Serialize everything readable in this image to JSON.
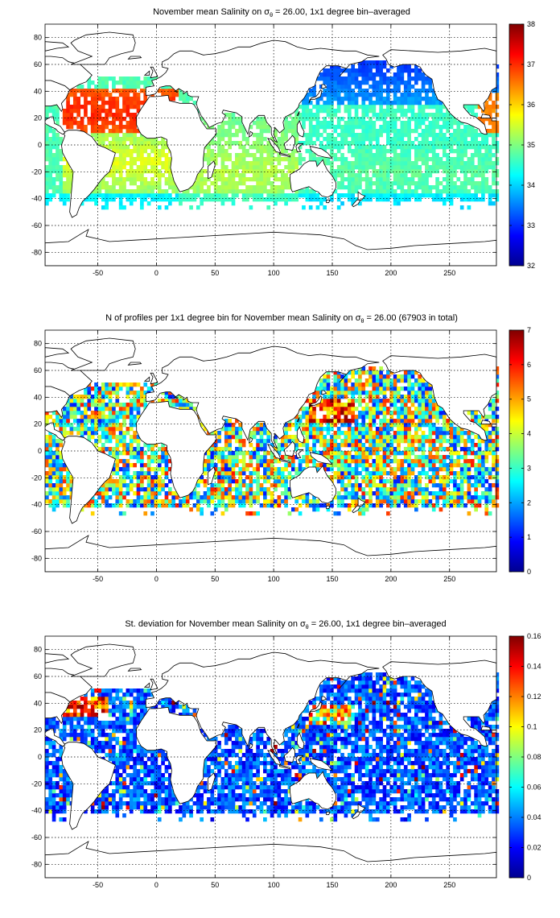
{
  "colormap": "jet",
  "chart_data": [
    {
      "type": "heatmap",
      "title_prefix": "November mean Salinity on ",
      "title_sigma": "σ",
      "title_subscript": "θ",
      "title_suffix": " = 26.00, 1x1 degree bin–averaged",
      "xlim": [
        -95,
        290
      ],
      "ylim": [
        -90,
        90
      ],
      "xticks": [
        -50,
        0,
        50,
        100,
        150,
        200,
        250
      ],
      "yticks": [
        -80,
        -60,
        -40,
        -20,
        0,
        20,
        40,
        60,
        80
      ],
      "grid": true,
      "colorbar": {
        "min": 32,
        "max": 38,
        "ticks": [
          32,
          33,
          34,
          35,
          36,
          37,
          38
        ]
      },
      "field": "salinity"
    },
    {
      "type": "heatmap",
      "title_prefix": "N of profiles per 1x1 degree bin for November mean Salinity on ",
      "title_sigma": "σ",
      "title_subscript": "θ",
      "title_suffix": " = 26.00 (67903 in total)",
      "xlim": [
        -95,
        290
      ],
      "ylim": [
        -90,
        90
      ],
      "xticks": [
        -50,
        0,
        50,
        100,
        150,
        200,
        250
      ],
      "yticks": [
        -80,
        -60,
        -40,
        -20,
        0,
        20,
        40,
        60,
        80
      ],
      "grid": true,
      "colorbar": {
        "min": 0,
        "max": 7,
        "ticks": [
          0,
          1,
          2,
          3,
          4,
          5,
          6,
          7
        ]
      },
      "field": "count"
    },
    {
      "type": "heatmap",
      "title_prefix": "St. deviation for November mean Salinity on ",
      "title_sigma": "σ",
      "title_subscript": "θ",
      "title_suffix": " = 26.00, 1x1 degree bin–averaged",
      "xlim": [
        -95,
        290
      ],
      "ylim": [
        -90,
        90
      ],
      "xticks": [
        -50,
        0,
        50,
        100,
        150,
        200,
        250
      ],
      "yticks": [
        -80,
        -60,
        -40,
        -20,
        0,
        20,
        40,
        60,
        80
      ],
      "grid": true,
      "colorbar": {
        "min": 0,
        "max": 0.16,
        "ticks": [
          0,
          0.02,
          0.04,
          0.06,
          0.08,
          0.1,
          0.12,
          0.14,
          0.16
        ]
      },
      "field": "std"
    }
  ]
}
